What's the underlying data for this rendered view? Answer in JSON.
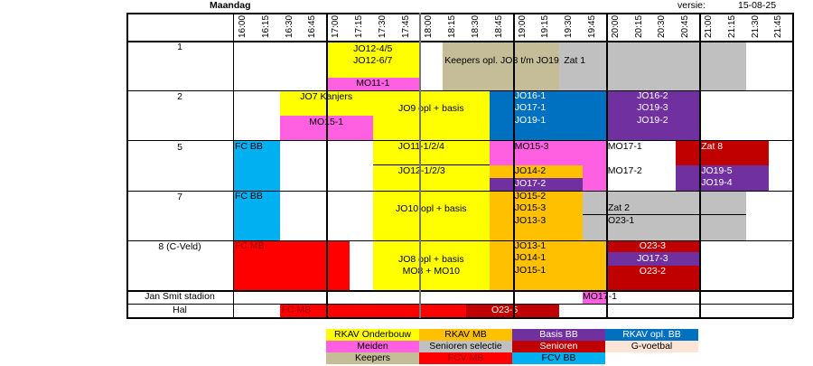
{
  "header": {
    "day": "Maandag",
    "version_label": "versie:",
    "version_date": "15-08-25"
  },
  "times": [
    "16:00",
    "16:15",
    "16:30",
    "16:45",
    "17:00",
    "17:15",
    "17:30",
    "17:45",
    "18:00",
    "18:15",
    "18:30",
    "18:45",
    "19:00",
    "19:15",
    "19:30",
    "19:45",
    "20:00",
    "20:15",
    "20:30",
    "20:45",
    "21:00",
    "21:15",
    "21:30",
    "21:45"
  ],
  "rows": [
    "1",
    "2",
    "5",
    "7",
    "8 (C-Veld)",
    "Jan Smit stadion",
    "Hal"
  ],
  "blocks": {
    "r1_a": "JO12-4/5",
    "r1_b": "JO12-6/7",
    "r1_c": "MO11-1",
    "r1_d": "Keepers opl. JO8 t/m JO19",
    "r1_e": "Zat 1",
    "r2_a": "JO7 Kanjers",
    "r2_b": "MO15-1",
    "r2_c": "JO9 opl + basis",
    "r2_d1": "JO16-1",
    "r2_d2": "JO17-1",
    "r2_d3": "JO19-1",
    "r2_e1": "JO16-2",
    "r2_e2": "JO19-3",
    "r2_e3": "JO19-2",
    "r5_a": "FC BB",
    "r5_b": "JO11-1/2/4",
    "r5_c": "JO12-1/2/3",
    "r5_d": "MO15-3",
    "r5_e": "JO14-2",
    "r5_f": "JO17-2",
    "r5_g": "MO17-1",
    "r5_h": "MO17-2",
    "r5_i": "Zat 8",
    "r5_j": "JO19-5",
    "r5_k": "JO19-4",
    "r7_a": "FC BB",
    "r7_b": "JO10 opl + basis",
    "r7_c1": "JO15-2",
    "r7_c2": "JO15-3",
    "r7_c3": "JO13-3",
    "r7_d": "Zat 2",
    "r7_e": "O23-1",
    "r8_a": "FC MB",
    "r8_b1": "JO8 opl + basis",
    "r8_b2": "MO8 + MO10",
    "r8_c1": "JO13-1",
    "r8_c2": "JO14-1",
    "r8_c3": "JO15-1",
    "r8_d": "O23-3",
    "r8_e": "JO17-3",
    "r8_f": "O23-2",
    "js_a": "MO17-1",
    "hal_a": "FC MB",
    "hal_b": "O23-5"
  },
  "legend": [
    {
      "label": "RKAV Onderbouw",
      "color": "#ffff00"
    },
    {
      "label": "RKAV MB",
      "color": "#ffc000"
    },
    {
      "label": "Basis BB",
      "color": "#7030a0"
    },
    {
      "label": "RKAV opl. BB",
      "color": "#0070c0"
    },
    {
      "label": "Meiden",
      "color": "#ff5fe0"
    },
    {
      "label": "Senioren selectie",
      "color": "#c0c0c0"
    },
    {
      "label": "Senioren",
      "color": "#c00000"
    },
    {
      "label": "G-voetbal",
      "color": "#fce4d6"
    },
    {
      "label": "Keepers",
      "color": "#c4bd97"
    },
    {
      "label": "FCV MB",
      "color": "#ff0000"
    },
    {
      "label": "FCV BB",
      "color": "#00b0f0"
    }
  ]
}
